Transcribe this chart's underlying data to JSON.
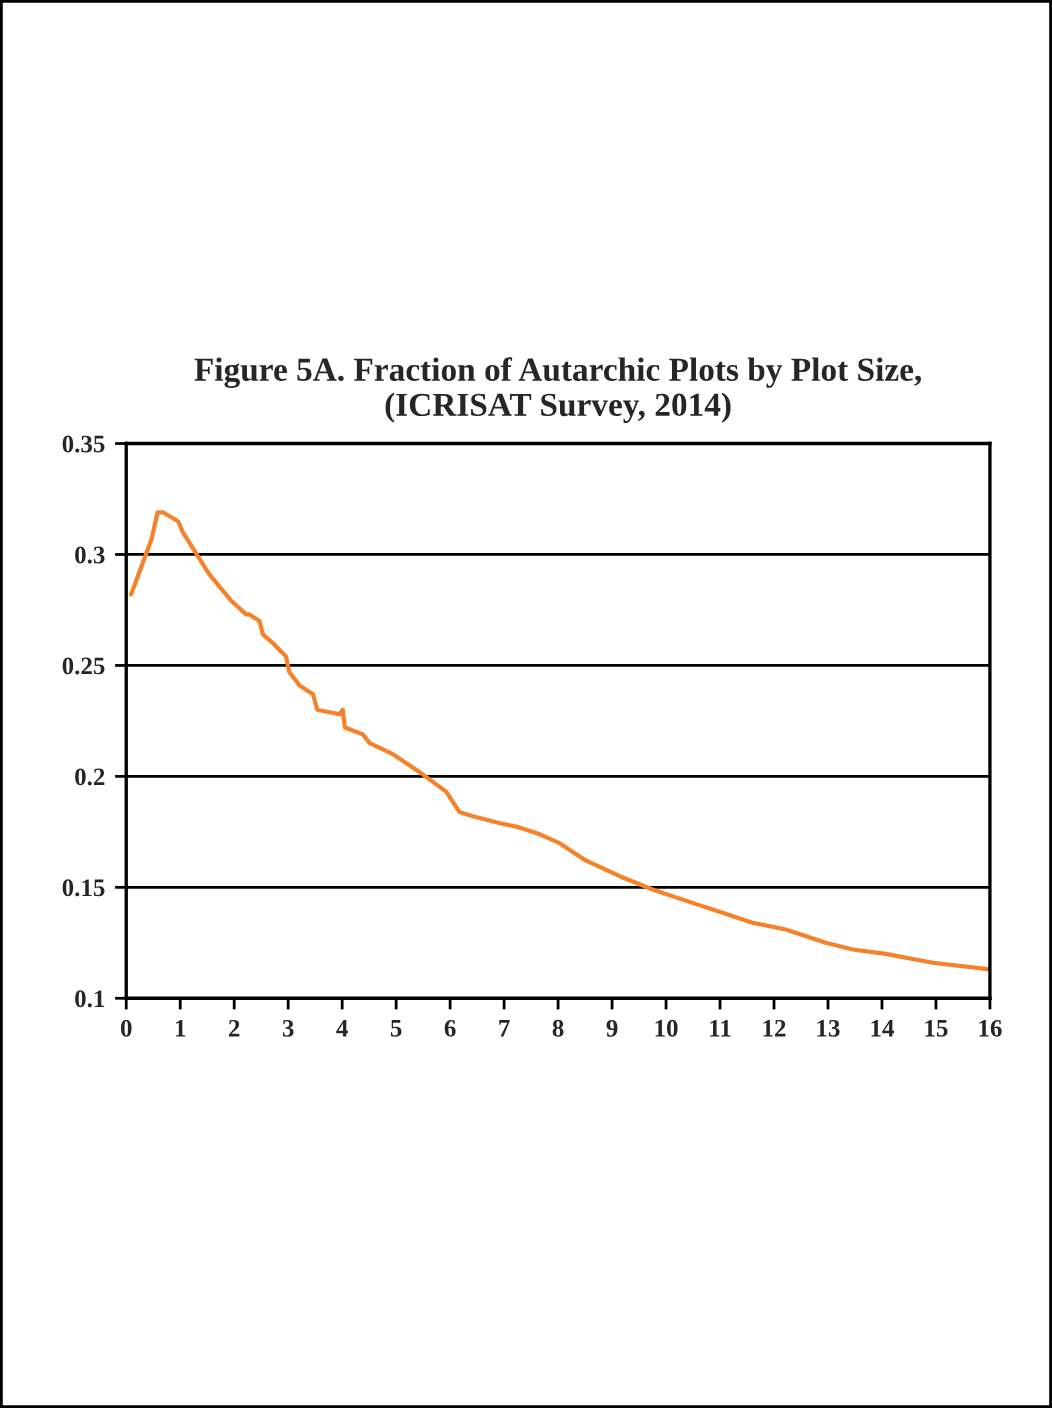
{
  "chart_data": {
    "type": "line",
    "title": "Figure 5A. Fraction of Autarchic Plots by Plot Size,\n(ICRISAT Survey, 2014)",
    "series": [
      {
        "color": "#f5822a",
        "x": [
          0.09,
          0.47,
          0.58,
          0.68,
          0.96,
          1.05,
          1.23,
          1.54,
          1.95,
          2.22,
          2.28,
          2.47,
          2.53,
          2.72,
          2.96,
          3.02,
          3.21,
          3.46,
          3.54,
          3.95,
          4.01,
          4.05,
          4.38,
          4.51,
          4.94,
          5.43,
          5.93,
          6.17,
          6.42,
          6.91,
          7.28,
          7.65,
          8.02,
          8.52,
          9.14,
          9.75,
          10.49,
          10.99,
          11.6,
          12.22,
          12.96,
          13.46,
          14.07,
          14.94,
          16.0
        ],
        "values": [
          0.282,
          0.307,
          0.319,
          0.319,
          0.315,
          0.31,
          0.303,
          0.291,
          0.279,
          0.273,
          0.273,
          0.27,
          0.264,
          0.26,
          0.254,
          0.247,
          0.241,
          0.237,
          0.23,
          0.228,
          0.23,
          0.222,
          0.219,
          0.215,
          0.21,
          0.202,
          0.193,
          0.184,
          0.182,
          0.179,
          0.177,
          0.174,
          0.17,
          0.162,
          0.155,
          0.149,
          0.143,
          0.139,
          0.134,
          0.131,
          0.125,
          0.122,
          0.12,
          0.116,
          0.113
        ]
      }
    ],
    "xlim": [
      0,
      16
    ],
    "xticks": [
      0,
      1,
      2,
      3,
      4,
      5,
      6,
      7,
      8,
      9,
      10,
      11,
      12,
      13,
      14,
      15,
      16
    ],
    "ylim": [
      0.1,
      0.35
    ],
    "yticks": [
      0.1,
      0.15,
      0.2,
      0.25,
      0.3,
      0.35
    ],
    "grid": "y",
    "marker": "none",
    "line_style": "solid"
  }
}
